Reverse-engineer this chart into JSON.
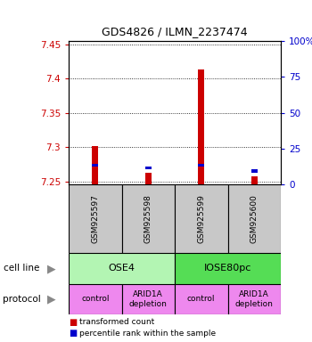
{
  "title": "GDS4826 / ILMN_2237474",
  "samples": [
    "GSM925597",
    "GSM925598",
    "GSM925599",
    "GSM925600"
  ],
  "red_values": [
    7.302,
    7.262,
    7.413,
    7.257
  ],
  "blue_values": [
    7.272,
    7.268,
    7.272,
    7.263
  ],
  "ymin": 7.245,
  "ymax": 7.455,
  "yticks_left": [
    7.25,
    7.3,
    7.35,
    7.4,
    7.45
  ],
  "yticks_right_vals": [
    0,
    25,
    50,
    75,
    100
  ],
  "yticks_right_labels": [
    "0",
    "25",
    "50",
    "75",
    "100%"
  ],
  "cell_line_labels": [
    "OSE4",
    "IOSE80pc"
  ],
  "cell_line_color1": "#b3f5b3",
  "cell_line_color2": "#55dd55",
  "protocol_labels": [
    "control",
    "ARID1A\ndepletion",
    "control",
    "ARID1A\ndepletion"
  ],
  "protocol_color": "#ee88ee",
  "sample_box_color": "#c8c8c8",
  "red_color": "#cc0000",
  "blue_color": "#0000cc",
  "legend_red": "transformed count",
  "legend_blue": "percentile rank within the sample",
  "cell_line_label": "cell line",
  "protocol_label": "protocol",
  "left_tick_color": "#cc0000",
  "right_tick_color": "#0000cc",
  "bar_width": 0.12
}
